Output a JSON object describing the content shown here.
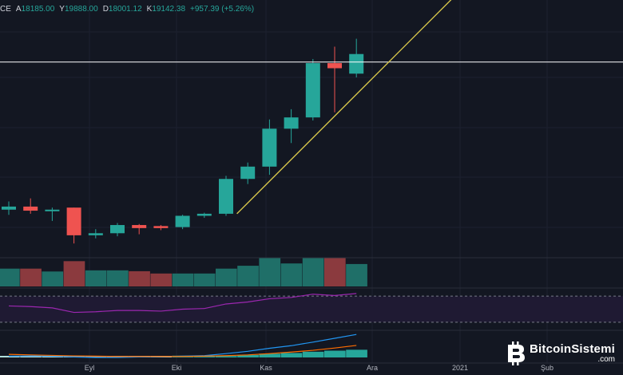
{
  "header": {
    "symbol_suffix": "CE",
    "open_label": "A",
    "open": "18185.00",
    "high_label": "Y",
    "high": "19888.00",
    "low_label": "D",
    "low": "18001.12",
    "close_label": "K",
    "close": "19142.38",
    "change": "+957.39 (+5.26%)"
  },
  "x_axis": {
    "ticks": [
      "Eyl",
      "Eki",
      "Kas",
      "Ara",
      "2021",
      "Şub"
    ]
  },
  "watermark": {
    "name": "BitcoinSistemi",
    "tld": ".com"
  },
  "colors": {
    "background": "#131722",
    "up": "#26a69a",
    "down": "#ef5350",
    "trendline": "#d4c44a",
    "horizontal_line": "#ffffff",
    "rsi": "#9c27b0",
    "macd": "#2196f3",
    "signal": "#ff6d00"
  },
  "chart_data": {
    "type": "candlestick",
    "interval": "weekly",
    "candles": [
      {
        "o": 11550,
        "h": 11950,
        "l": 11300,
        "c": 11700
      },
      {
        "o": 11700,
        "h": 12100,
        "l": 11350,
        "c": 11500
      },
      {
        "o": 11500,
        "h": 11650,
        "l": 11000,
        "c": 11550
      },
      {
        "o": 11650,
        "h": 11650,
        "l": 9900,
        "c": 10300
      },
      {
        "o": 10300,
        "h": 10600,
        "l": 10150,
        "c": 10400
      },
      {
        "o": 10400,
        "h": 10900,
        "l": 10250,
        "c": 10800
      },
      {
        "o": 10800,
        "h": 10850,
        "l": 10350,
        "c": 10650
      },
      {
        "o": 10750,
        "h": 10800,
        "l": 10550,
        "c": 10650
      },
      {
        "o": 10700,
        "h": 11300,
        "l": 10600,
        "c": 11250
      },
      {
        "o": 11250,
        "h": 11400,
        "l": 11150,
        "c": 11350
      },
      {
        "o": 11350,
        "h": 13200,
        "l": 11250,
        "c": 13050
      },
      {
        "o": 13050,
        "h": 13850,
        "l": 12800,
        "c": 13650
      },
      {
        "o": 13650,
        "h": 15950,
        "l": 13250,
        "c": 15500
      },
      {
        "o": 15500,
        "h": 16450,
        "l": 14800,
        "c": 16050
      },
      {
        "o": 16050,
        "h": 18900,
        "l": 15900,
        "c": 18700
      },
      {
        "o": 18700,
        "h": 19500,
        "l": 16300,
        "c": 18450
      },
      {
        "o": 18185.0,
        "h": 19888.0,
        "l": 18001.12,
        "c": 19142.38
      }
    ],
    "volume": [
      {
        "v": 0.62,
        "dir": "up"
      },
      {
        "v": 0.62,
        "dir": "down"
      },
      {
        "v": 0.52,
        "dir": "up"
      },
      {
        "v": 0.88,
        "dir": "down"
      },
      {
        "v": 0.56,
        "dir": "up"
      },
      {
        "v": 0.56,
        "dir": "up"
      },
      {
        "v": 0.53,
        "dir": "down"
      },
      {
        "v": 0.45,
        "dir": "down"
      },
      {
        "v": 0.45,
        "dir": "up"
      },
      {
        "v": 0.45,
        "dir": "up"
      },
      {
        "v": 0.62,
        "dir": "up"
      },
      {
        "v": 0.72,
        "dir": "up"
      },
      {
        "v": 1.0,
        "dir": "up"
      },
      {
        "v": 0.8,
        "dir": "up"
      },
      {
        "v": 1.0,
        "dir": "up"
      },
      {
        "v": 1.0,
        "dir": "down"
      },
      {
        "v": 0.78,
        "dir": "up"
      }
    ],
    "rsi": [
      55,
      54,
      52,
      45,
      46,
      48,
      48,
      47,
      50,
      51,
      58,
      61,
      66,
      68,
      73,
      71,
      74
    ],
    "rsi_band": [
      30,
      70
    ],
    "macd": [
      0.05,
      0.06,
      0.05,
      0.02,
      0.0,
      0.0,
      0.02,
      0.03,
      0.05,
      0.07,
      0.15,
      0.24,
      0.36,
      0.46,
      0.6,
      0.75,
      0.9
    ],
    "signal": [
      0.12,
      0.1,
      0.08,
      0.06,
      0.05,
      0.04,
      0.04,
      0.04,
      0.04,
      0.05,
      0.07,
      0.1,
      0.15,
      0.21,
      0.28,
      0.37,
      0.47
    ],
    "horizontal_level": 18750,
    "trendline": [
      {
        "i": 10.5,
        "p": 11350
      },
      {
        "i": 21.5,
        "p": 23000
      }
    ],
    "y_range": [
      9400,
      21000
    ],
    "grid": true
  }
}
